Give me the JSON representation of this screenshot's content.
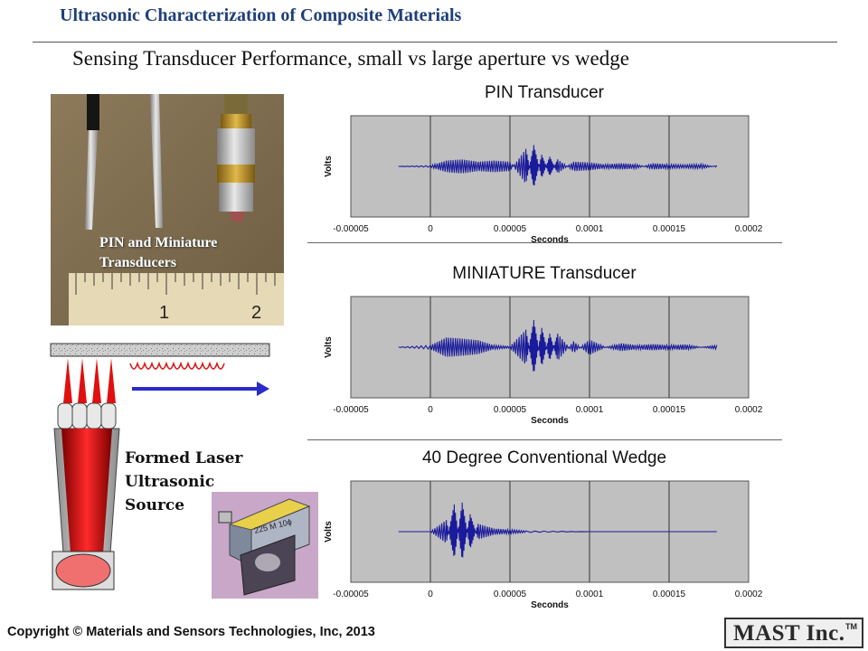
{
  "header": {
    "title": "Ultrasonic Characterization of Composite Materials",
    "subtitle": "Sensing Transducer Performance, small vs large aperture vs wedge"
  },
  "photo": {
    "caption_line1": "PIN and Miniature",
    "caption_line2": "Transducers",
    "ruler_marks": [
      "1",
      "2"
    ]
  },
  "laser": {
    "label_line1": "Formed Laser",
    "label_line2": "Ultrasonic Source"
  },
  "wedge": {
    "label": "225 M 10ϕ"
  },
  "footer": {
    "copyright": "Copyright © Materials and Sensors Technologies, Inc, 2013"
  },
  "logo": {
    "text": "MAST Inc.",
    "tm": "TM"
  },
  "colors": {
    "header": "#1f3f7a",
    "signal": "#1a1a9c",
    "plot_bg": "#c0c0c0",
    "laser_red": "#e01010"
  },
  "chart_data": [
    {
      "type": "line",
      "title": "PIN Transducer",
      "xlabel": "Seconds",
      "ylabel": "Volts",
      "xlim": [
        -5e-05,
        0.0002
      ],
      "xticks": [
        "-0.00005",
        "0",
        "0.00005",
        "0.0001",
        "0.00015",
        "0.0002"
      ],
      "grid": "vertical",
      "series": [
        {
          "x": [
            -2e-05,
            0.0,
            1e-05,
            2e-05,
            3e-05,
            4e-05,
            5e-05,
            6e-05,
            6.5e-05,
            7e-05,
            7.5e-05,
            8e-05,
            9e-05,
            0.0001,
            0.00011,
            0.00012,
            0.00013,
            0.00014,
            0.00015,
            0.00016,
            0.00017,
            0.00018
          ],
          "y": [
            0.0,
            0.02,
            0.15,
            0.18,
            0.12,
            0.15,
            0.12,
            -0.45,
            0.55,
            -0.3,
            0.25,
            -0.18,
            0.12,
            0.1,
            0.05,
            0.08,
            0.05,
            -0.08,
            -0.05,
            -0.04,
            -0.06,
            0.02
          ]
        }
      ]
    },
    {
      "type": "line",
      "title": "MINIATURE Transducer",
      "xlabel": "Seconds",
      "ylabel": "Volts",
      "xlim": [
        -5e-05,
        0.0002
      ],
      "xticks": [
        "-0.00005",
        "0",
        "0.00005",
        "0.0001",
        "0.00015",
        "0.0002"
      ],
      "grid": "vertical",
      "series": [
        {
          "x": [
            -2e-05,
            0.0,
            1e-05,
            2e-05,
            3e-05,
            4e-05,
            5e-05,
            6e-05,
            6.5e-05,
            7e-05,
            7.5e-05,
            8e-05,
            9e-05,
            0.0001,
            0.00011,
            0.00012,
            0.00013,
            0.00014,
            0.00015,
            0.00016,
            0.00017,
            0.00018
          ],
          "y": [
            0.0,
            0.05,
            0.25,
            0.22,
            0.18,
            0.05,
            0.02,
            0.45,
            -0.7,
            0.5,
            -0.35,
            0.35,
            -0.15,
            0.2,
            0.0,
            0.1,
            0.05,
            0.08,
            0.05,
            0.07,
            0.0,
            0.05
          ]
        }
      ]
    },
    {
      "type": "line",
      "title": "40 Degree  Conventional Wedge",
      "xlabel": "Seconds",
      "ylabel": "Volts",
      "xlim": [
        -5e-05,
        0.0002
      ],
      "xticks": [
        "-0.00005",
        "0",
        "0.00005",
        "0.0001",
        "0.00015",
        "0.0002"
      ],
      "grid": "vertical",
      "series": [
        {
          "x": [
            -2e-05,
            0.0,
            1e-05,
            1.5e-05,
            2e-05,
            2.5e-05,
            3e-05,
            4e-05,
            5e-05,
            6e-05,
            0.0001,
            0.00015,
            0.00018
          ],
          "y": [
            0.0,
            0.0,
            0.3,
            -0.7,
            0.75,
            -0.45,
            0.2,
            0.08,
            0.05,
            0.02,
            0.0,
            0.0,
            0.0
          ]
        }
      ]
    }
  ]
}
